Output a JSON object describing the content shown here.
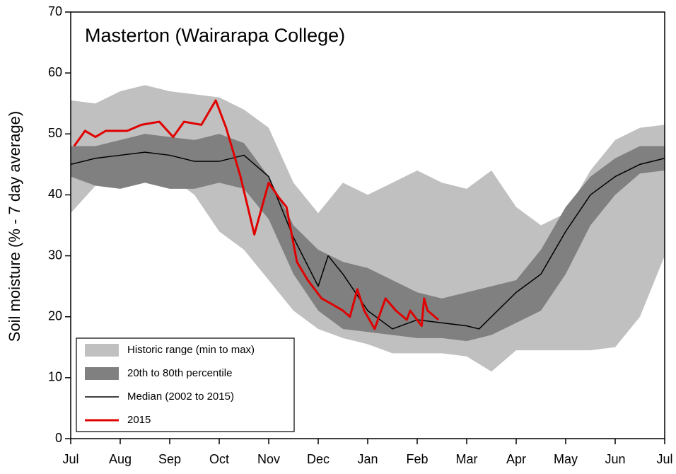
{
  "chart_data": {
    "type": "line",
    "title": "Masterton (Wairarapa College)",
    "ylabel": "Soil moisture (% - 7 day average)",
    "xlim": [
      0,
      12
    ],
    "xticks": [
      {
        "value": 0,
        "label": "Jul"
      },
      {
        "value": 1,
        "label": "Aug"
      },
      {
        "value": 2,
        "label": "Sep"
      },
      {
        "value": 3,
        "label": "Oct"
      },
      {
        "value": 4,
        "label": "Nov"
      },
      {
        "value": 5,
        "label": "Dec"
      },
      {
        "value": 6,
        "label": "Jan"
      },
      {
        "value": 7,
        "label": "Feb"
      },
      {
        "value": 8,
        "label": "Mar"
      },
      {
        "value": 9,
        "label": "Apr"
      },
      {
        "value": 10,
        "label": "May"
      },
      {
        "value": 11,
        "label": "Jun"
      },
      {
        "value": 12,
        "label": "Jul"
      }
    ],
    "ylim": [
      0,
      70
    ],
    "yticks": [
      0,
      10,
      20,
      30,
      40,
      50,
      60,
      70
    ],
    "legend": "lower left",
    "series": [
      {
        "name": "Historic range (min to max)",
        "type": "area",
        "color": "#c0c0c0",
        "x": [
          0,
          0.5,
          1,
          1.5,
          2,
          2.5,
          3,
          3.5,
          4,
          4.5,
          5,
          5.5,
          6,
          6.5,
          7,
          7.5,
          8,
          8.5,
          9,
          9.5,
          10,
          10.5,
          11,
          11.5,
          12
        ],
        "upper": [
          55.5,
          55,
          57,
          58,
          57,
          56.5,
          56,
          54,
          51,
          42,
          37,
          42,
          40,
          42,
          44,
          42,
          41,
          44,
          38,
          35,
          37,
          44,
          49,
          51,
          51.5
        ],
        "lower": [
          37,
          41.5,
          42,
          42.5,
          43,
          40,
          34,
          31,
          26,
          21,
          18,
          16.5,
          15.5,
          14,
          14,
          14,
          13.5,
          11,
          14.5,
          14.5,
          14.5,
          14.5,
          15,
          20,
          30
        ]
      },
      {
        "name": "20th to 80th percentile",
        "type": "area",
        "color": "#808080",
        "x": [
          0,
          0.5,
          1,
          1.5,
          2,
          2.5,
          3,
          3.5,
          4,
          4.5,
          5,
          5.5,
          6,
          6.5,
          7,
          7.5,
          8,
          8.5,
          9,
          9.5,
          10,
          10.5,
          11,
          11.5,
          12
        ],
        "upper": [
          48,
          48,
          49,
          50,
          49.5,
          49,
          50,
          48.5,
          43,
          35,
          31,
          29,
          28,
          26,
          24,
          23,
          24,
          25,
          26,
          31,
          38,
          43,
          46,
          48,
          48
        ],
        "lower": [
          43,
          41.5,
          41,
          42,
          41,
          41,
          42,
          41,
          36,
          27,
          21,
          18,
          17.5,
          17,
          16.5,
          16.5,
          16,
          17,
          19,
          21,
          27,
          35,
          40,
          43.5,
          44
        ]
      },
      {
        "name": "Median (2002 to 2015)",
        "type": "line",
        "color": "#000000",
        "x": [
          0,
          0.5,
          1,
          1.5,
          2,
          2.5,
          3,
          3.5,
          4,
          4.5,
          5,
          5.2,
          5.5,
          6,
          6.5,
          7,
          7.5,
          8,
          8.25,
          8.5,
          9,
          9.5,
          10,
          10.5,
          11,
          11.5,
          12
        ],
        "values": [
          45,
          46,
          46.5,
          47,
          46.5,
          45.5,
          45.5,
          46.5,
          43,
          33,
          25,
          30,
          27,
          21,
          18,
          19.5,
          19,
          18.5,
          18,
          20,
          24,
          27,
          34,
          40,
          43,
          45,
          46
        ]
      },
      {
        "name": "2015",
        "type": "line",
        "color": "#e00000",
        "x": [
          0.07,
          0.29,
          0.5,
          0.71,
          1.14,
          1.43,
          1.79,
          2.07,
          2.29,
          2.64,
          2.93,
          3.14,
          3.43,
          3.71,
          4.0,
          4.21,
          4.36,
          4.57,
          4.79,
          5.07,
          5.29,
          5.5,
          5.64,
          5.79,
          5.93,
          6.14,
          6.36,
          6.57,
          6.79,
          6.86,
          7.09,
          7.14,
          7.21,
          7.43
        ],
        "values": [
          48,
          50.5,
          49.5,
          50.5,
          50.5,
          51.5,
          52,
          49.5,
          52,
          51.5,
          55.5,
          51,
          43,
          33.5,
          42,
          39.5,
          38,
          29,
          26,
          23,
          22,
          21,
          20,
          24.5,
          21,
          18,
          23,
          21,
          19.5,
          21,
          18.5,
          23,
          21,
          19.5
        ]
      }
    ]
  }
}
